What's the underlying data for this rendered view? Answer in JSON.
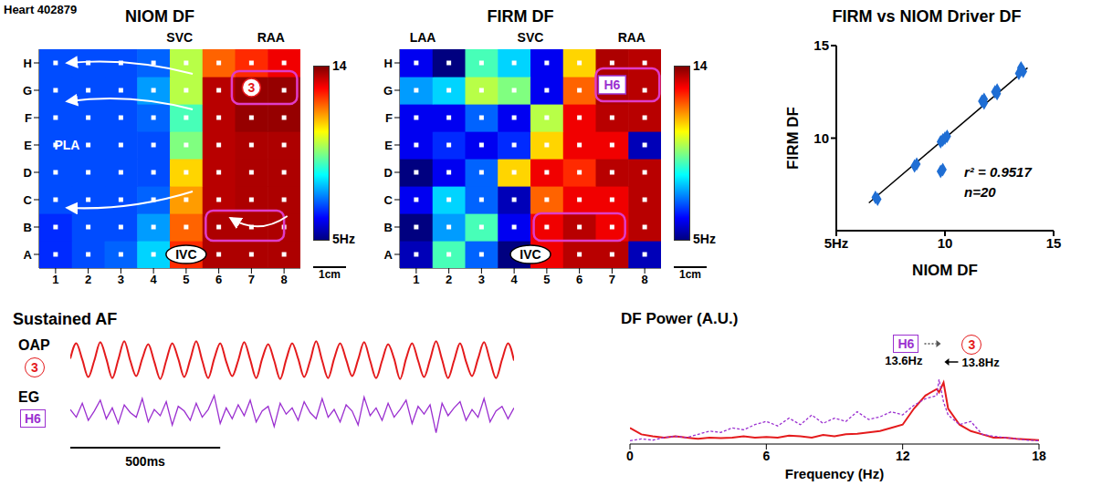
{
  "title": "Heart 402879",
  "chart_data": [
    {
      "type": "heatmap",
      "title": "NIOM DF",
      "x": [
        1,
        2,
        3,
        4,
        5,
        6,
        7,
        8
      ],
      "y": [
        1,
        2,
        3,
        4,
        5,
        6,
        7,
        8
      ],
      "xlim": [
        0.5,
        8.5
      ],
      "ylim": [
        0.5,
        8.5
      ],
      "xticks": [
        1,
        2,
        3,
        4,
        5,
        6,
        7,
        8
      ],
      "yticks": [
        {
          "value": 1,
          "label": "A"
        },
        {
          "value": 2,
          "label": "B"
        },
        {
          "value": 3,
          "label": "C"
        },
        {
          "value": 4,
          "label": "D"
        },
        {
          "value": 5,
          "label": "E"
        },
        {
          "value": 6,
          "label": "F"
        },
        {
          "value": 7,
          "label": "G"
        },
        {
          "value": 8,
          "label": "H"
        }
      ],
      "cells": [
        [
          6.5,
          6.8,
          7,
          8,
          12.5,
          13.6,
          13.6,
          13.6
        ],
        [
          6.5,
          6.8,
          6.8,
          7.5,
          12,
          13.6,
          13.6,
          13.6
        ],
        [
          6.8,
          6.8,
          6.8,
          7,
          11.5,
          13.5,
          13.6,
          13.6
        ],
        [
          6.8,
          6.8,
          6.8,
          6.8,
          11,
          13.5,
          13.6,
          13.6
        ],
        [
          6.8,
          6.8,
          6.8,
          6.8,
          9.5,
          13.5,
          13.6,
          13.6
        ],
        [
          6.8,
          6.8,
          6.8,
          7,
          9,
          13.5,
          13.8,
          13.8
        ],
        [
          6.8,
          6.8,
          6.8,
          7.5,
          10,
          13.5,
          13.8,
          13.8
        ],
        [
          6.8,
          6.8,
          6.8,
          7,
          10,
          12,
          12.5,
          13
        ]
      ],
      "colorbar": {
        "range": [
          5,
          14
        ],
        "ticks": [
          {
            "value": 5,
            "label": "5Hz"
          },
          14
        ]
      },
      "annotations": [
        "SVC",
        "RAA",
        "PLA",
        "IVC"
      ],
      "driver_label": "3",
      "scale_bar": "1cm"
    },
    {
      "type": "heatmap",
      "title": "FIRM DF",
      "x": [
        1,
        2,
        3,
        4,
        5,
        6,
        7,
        8
      ],
      "y": [
        1,
        2,
        3,
        4,
        5,
        6,
        7,
        8
      ],
      "xlim": [
        0.5,
        8.5
      ],
      "ylim": [
        0.5,
        8.5
      ],
      "xticks": [
        1,
        2,
        3,
        4,
        5,
        6,
        7,
        8
      ],
      "yticks": [
        {
          "value": 1,
          "label": "A"
        },
        {
          "value": 2,
          "label": "B"
        },
        {
          "value": 3,
          "label": "C"
        },
        {
          "value": 4,
          "label": "D"
        },
        {
          "value": 5,
          "label": "E"
        },
        {
          "value": 6,
          "label": "F"
        },
        {
          "value": 7,
          "label": "G"
        },
        {
          "value": 8,
          "label": "H"
        }
      ],
      "cells": [
        [
          5.5,
          9,
          7,
          5,
          13,
          13.5,
          13.5,
          5.5
        ],
        [
          5,
          7.5,
          9,
          6,
          13,
          13.5,
          13,
          13.5
        ],
        [
          6,
          8,
          7,
          5.5,
          12,
          13,
          13,
          13.5
        ],
        [
          5,
          6,
          7,
          11,
          13,
          12.5,
          13.5,
          13.5
        ],
        [
          6,
          6.5,
          6,
          6.5,
          11,
          13,
          13,
          5.5
        ],
        [
          6,
          6,
          7,
          6,
          10,
          13,
          13.5,
          13.5
        ],
        [
          7.5,
          8,
          10,
          9.5,
          6,
          12,
          13.6,
          13.5
        ],
        [
          6,
          5,
          9,
          8,
          6,
          11,
          13.6,
          13.5
        ]
      ],
      "colorbar": {
        "range": [
          5,
          14
        ],
        "ticks": [
          {
            "value": 5,
            "label": "5Hz"
          },
          14
        ]
      },
      "annotations": [
        "LAA",
        "SVC",
        "RAA",
        "IVC"
      ],
      "driver_label": "H6",
      "scale_bar": "1cm"
    },
    {
      "type": "scatter",
      "title": "FIRM vs NIOM Driver DF",
      "x_label": "NIOM DF",
      "y_label": "FIRM DF",
      "x": [
        6.8,
        6.9,
        8.6,
        8.7,
        9.8,
        9.9,
        9.8,
        9.9,
        10.0,
        10.1,
        11.7,
        11.8,
        11.8,
        12.3,
        12.4,
        12.4,
        13.4,
        13.5,
        13.6,
        13.5
      ],
      "values": [
        6.8,
        6.7,
        8.5,
        8.6,
        8.2,
        8.3,
        9.8,
        9.9,
        10.0,
        10.1,
        12.0,
        11.9,
        12.1,
        12.5,
        12.4,
        12.6,
        13.5,
        13.7,
        13.6,
        13.8
      ],
      "color": "#1f6ed4",
      "marker": "diamond",
      "xlim": [
        5,
        15
      ],
      "xticks": [
        {
          "value": 5,
          "label": "5Hz"
        },
        10,
        15
      ],
      "ylim": [
        5,
        15
      ],
      "yticks": [
        10,
        15
      ],
      "fit_line": {
        "x": [
          6.5,
          13.8
        ],
        "y": [
          6.5,
          13.8
        ]
      },
      "annotations": [
        "r² = 0.9517",
        "n=20"
      ]
    },
    {
      "type": "line",
      "title": "Sustained AF",
      "tick_labels": false,
      "xlim": [
        0,
        1480
      ],
      "x": [
        0,
        20,
        40,
        60,
        80,
        100,
        120,
        140,
        160,
        180,
        200,
        220,
        240,
        260,
        280,
        300,
        320,
        340,
        360,
        380,
        400,
        420,
        440,
        460,
        480,
        500,
        520,
        540,
        560,
        580,
        600,
        620,
        640,
        660,
        680,
        700,
        720,
        740,
        760,
        780,
        800,
        820,
        840,
        860,
        880,
        900,
        920,
        940,
        960,
        980,
        1000,
        1020,
        1040,
        1060,
        1080,
        1100,
        1120,
        1140,
        1160,
        1180,
        1200,
        1220,
        1240,
        1260,
        1280,
        1300,
        1320,
        1340,
        1360,
        1380,
        1400,
        1420,
        1440,
        1460,
        1480
      ],
      "series": [
        {
          "name": "OAP",
          "label": "3",
          "color": "#e41a1c",
          "ylim": [
            -1.2,
            1.2
          ],
          "values": [
            0.1,
            0.9,
            0.05,
            -0.85,
            0.0,
            0.95,
            0.1,
            -0.9,
            0.05,
            1.0,
            0.0,
            -0.8,
            0.1,
            0.85,
            -0.05,
            -0.95,
            0.0,
            0.9,
            0.1,
            -0.85,
            0.05,
            1.0,
            0.0,
            -0.9,
            0.1,
            0.9,
            -0.05,
            -0.8,
            0.0,
            0.95,
            0.05,
            -0.9,
            0.1,
            0.85,
            0.0,
            -0.95,
            0.05,
            0.9,
            0.1,
            -0.85,
            0.0,
            1.0,
            0.0,
            -0.9,
            0.1,
            0.9,
            0.05,
            -0.8,
            0.05,
            0.95,
            0.0,
            -0.9,
            0.0,
            0.85,
            0.1,
            -0.95,
            0.1,
            0.9,
            0.0,
            -0.85,
            0.05,
            1.0,
            0.05,
            -0.9,
            0.0,
            0.9,
            -0.05,
            -0.8,
            0.1,
            0.95,
            0.0,
            -0.9,
            0.05,
            0.9,
            0.0
          ]
        },
        {
          "name": "EG",
          "label": "H6",
          "color": "#9b30d0",
          "ylim": [
            -1.5,
            1.5
          ],
          "values": [
            0.2,
            -0.3,
            0.6,
            -0.5,
            0.1,
            0.8,
            -0.4,
            0.3,
            -0.7,
            0.5,
            0.0,
            -0.3,
            0.9,
            -0.6,
            0.2,
            -0.2,
            0.7,
            -0.8,
            0.4,
            0.1,
            -0.5,
            0.6,
            -0.3,
            0.2,
            1.1,
            -0.7,
            0.3,
            -0.4,
            0.5,
            -0.2,
            0.8,
            -0.6,
            0.1,
            0.4,
            -0.9,
            0.6,
            -0.1,
            0.3,
            -0.5,
            0.7,
            0.0,
            -0.4,
            0.9,
            -0.3,
            0.2,
            -0.6,
            0.5,
            0.1,
            -0.8,
            1.0,
            -0.2,
            0.3,
            -0.5,
            0.6,
            -0.3,
            0.2,
            0.8,
            -0.7,
            0.4,
            -0.1,
            0.5,
            -1.3,
            0.6,
            -0.2,
            0.3,
            0.7,
            -0.5,
            0.2,
            -0.3,
            0.9,
            -0.6,
            0.1,
            0.4,
            -0.4,
            0.3
          ]
        }
      ],
      "scale_bar": {
        "x": [
          0,
          500
        ],
        "label": "500ms"
      }
    },
    {
      "type": "line",
      "title": "DF Power (A.U.)",
      "x_label": "Frequency (Hz)",
      "tick_labels": "x",
      "xlim": [
        0,
        18
      ],
      "xticks": [
        0,
        6,
        12,
        18
      ],
      "ylim": [
        0,
        1.1
      ],
      "x": [
        0,
        0.5,
        1,
        1.5,
        2,
        2.5,
        3,
        3.5,
        4,
        4.5,
        5,
        5.5,
        6,
        6.5,
        7,
        7.5,
        8,
        8.5,
        9,
        9.5,
        10,
        10.5,
        11,
        11.5,
        12,
        12.5,
        13,
        13.5,
        13.6,
        13.8,
        14,
        14.5,
        15,
        15.5,
        16,
        16.5,
        17,
        17.5,
        18
      ],
      "series": [
        {
          "name": "3",
          "color": "#e41a1c",
          "line_style": "solid",
          "values": [
            0.25,
            0.15,
            0.12,
            0.1,
            0.12,
            0.1,
            0.08,
            0.1,
            0.09,
            0.1,
            0.12,
            0.1,
            0.11,
            0.1,
            0.13,
            0.12,
            0.1,
            0.14,
            0.12,
            0.15,
            0.16,
            0.18,
            0.2,
            0.25,
            0.3,
            0.55,
            0.75,
            0.85,
            0.8,
            0.95,
            0.55,
            0.3,
            0.2,
            0.15,
            0.1,
            0.1,
            0.08,
            0.07,
            0.06
          ]
        },
        {
          "name": "H6",
          "color": "#9b30d0",
          "line_style": "dashed",
          "values": [
            0.05,
            0.08,
            0.06,
            0.1,
            0.12,
            0.1,
            0.15,
            0.2,
            0.18,
            0.25,
            0.22,
            0.3,
            0.35,
            0.28,
            0.4,
            0.3,
            0.45,
            0.32,
            0.4,
            0.35,
            0.5,
            0.38,
            0.42,
            0.5,
            0.45,
            0.6,
            0.7,
            0.75,
            1.0,
            0.65,
            0.45,
            0.3,
            0.35,
            0.15,
            0.12,
            0.1,
            0.08,
            0.06,
            0.05
          ]
        }
      ],
      "peaks": [
        {
          "series": "H6",
          "x": 13.6,
          "label": "13.6Hz"
        },
        {
          "series": "3",
          "x": 13.8,
          "label": "13.8Hz"
        }
      ]
    }
  ]
}
